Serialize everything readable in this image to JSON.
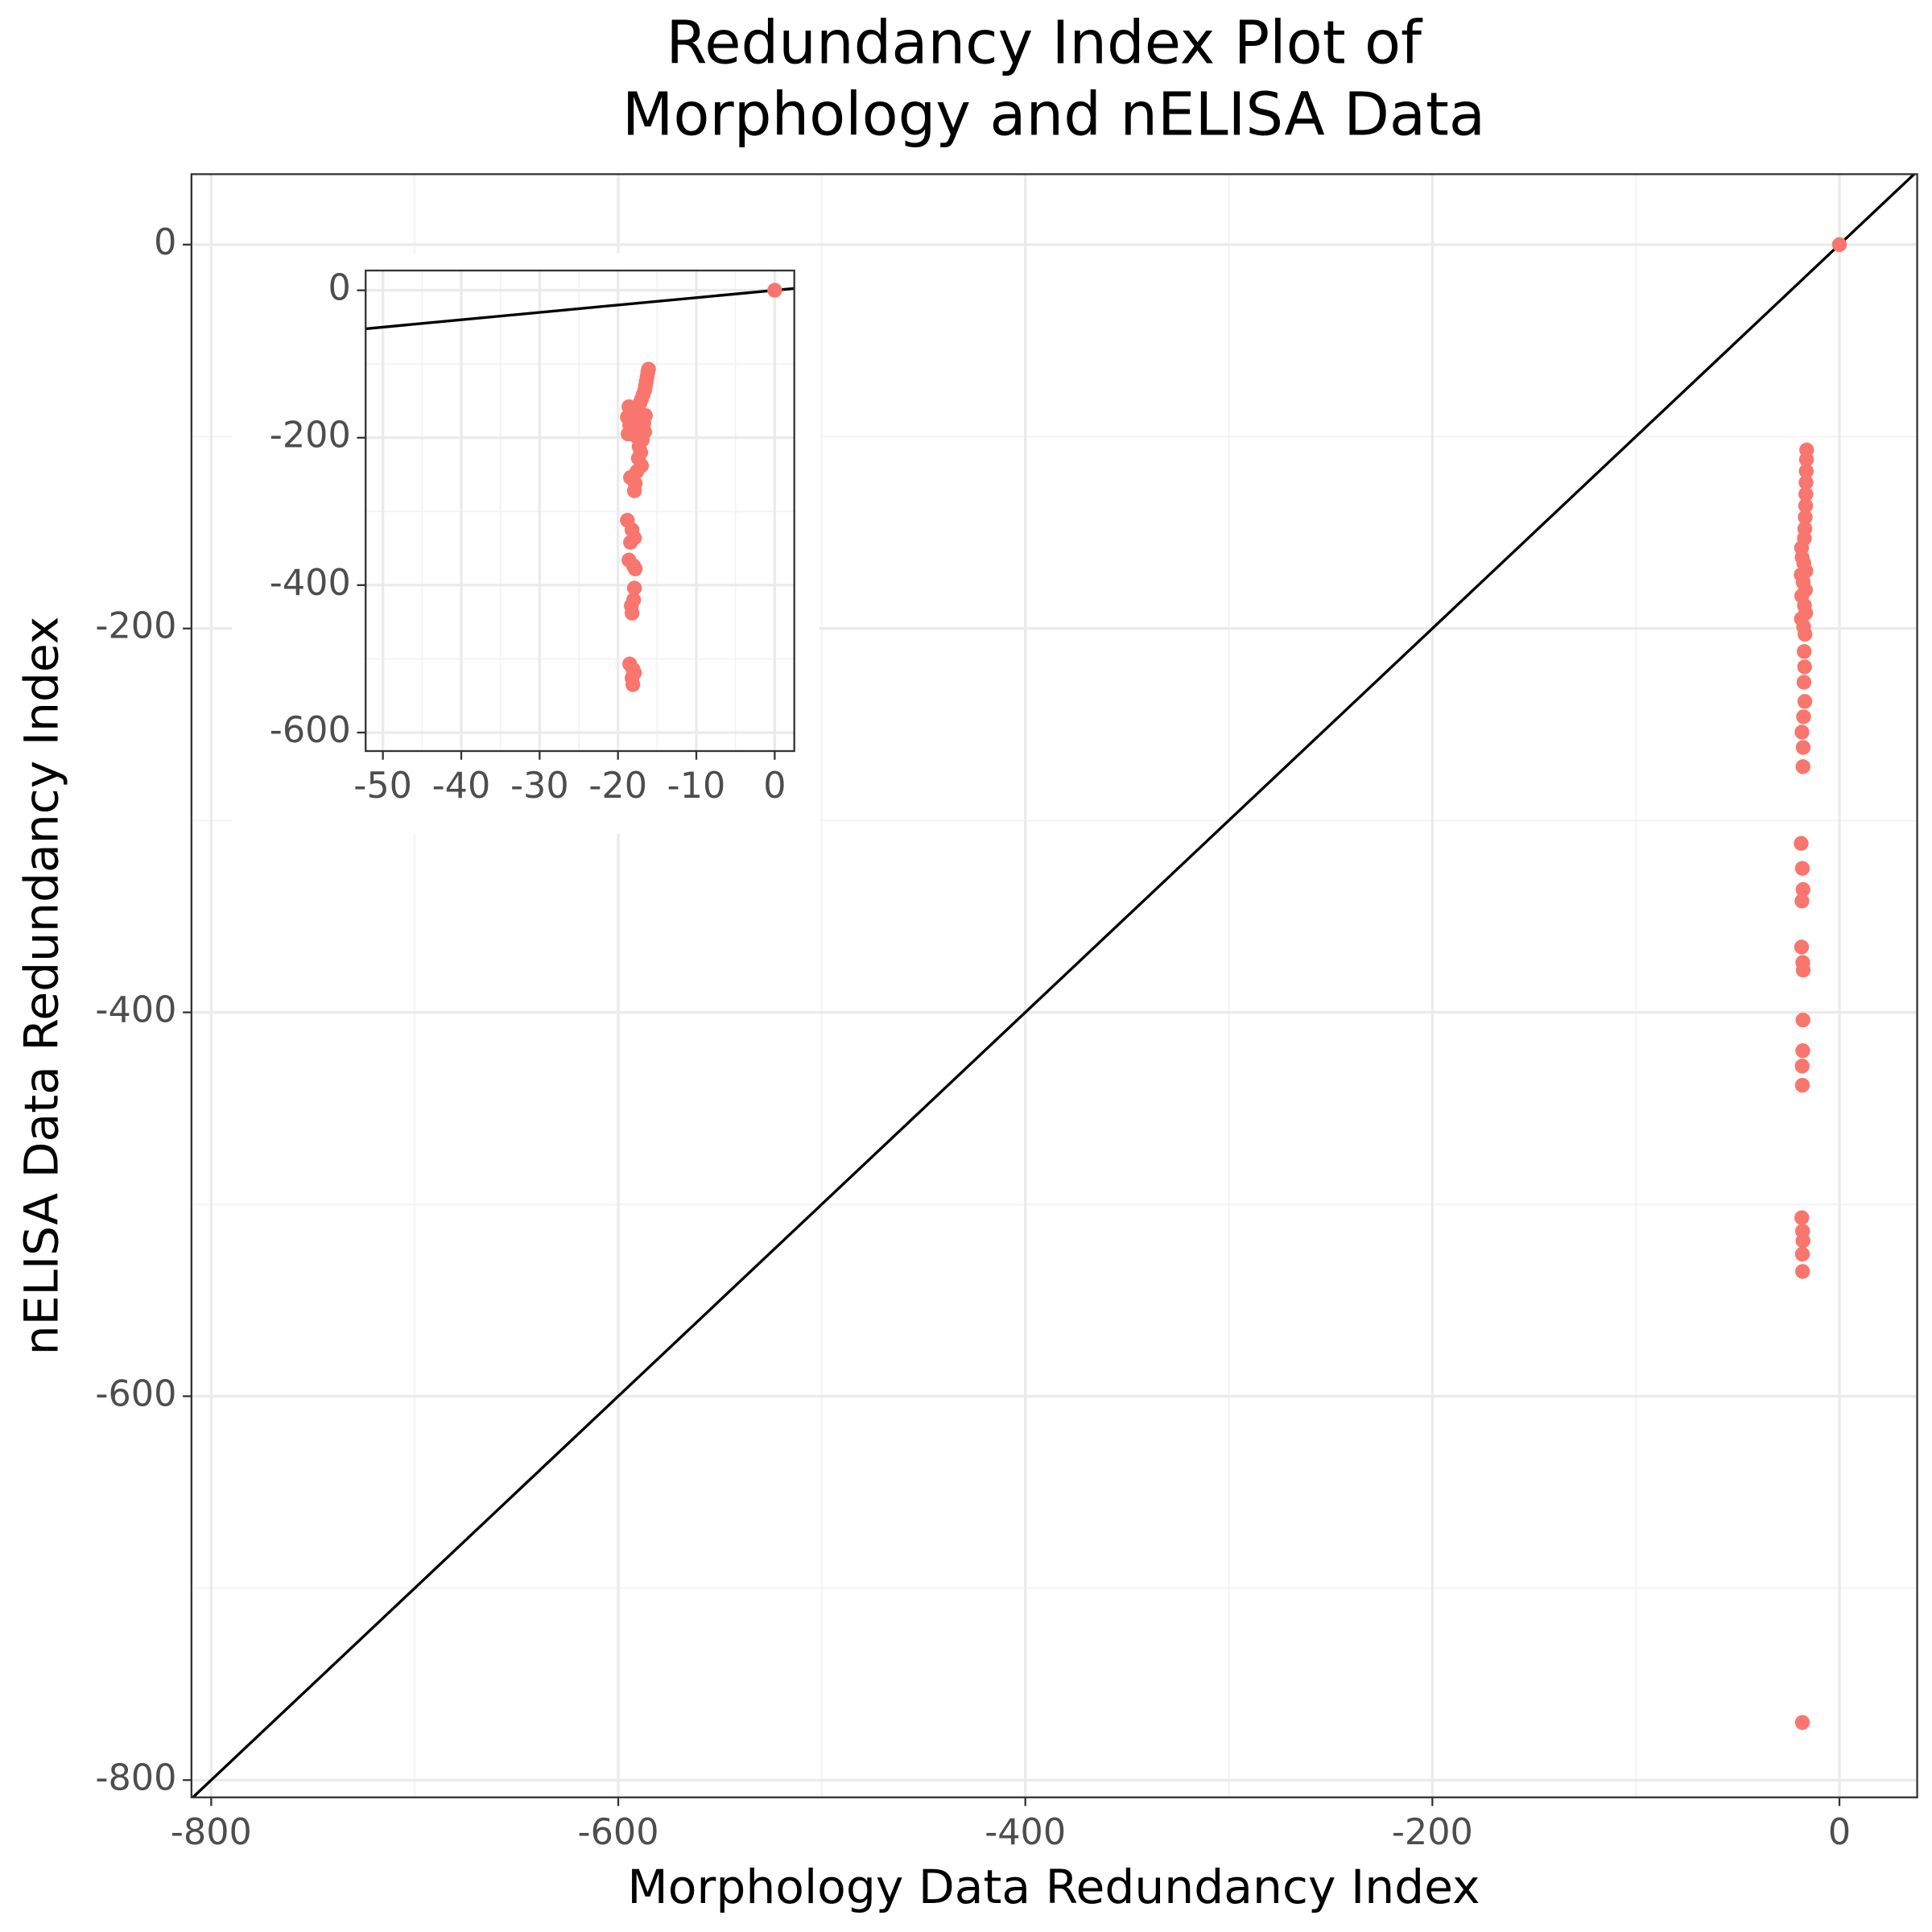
{
  "chart_data": {
    "type": "scatter",
    "title": [
      "Redundancy Index Plot of",
      "Morphology and nELISA Data"
    ],
    "x_label": "Morphology Data Redundancy Index",
    "y_label": "nELISA Data Redundancy Index",
    "color": "#F8766D",
    "reference_line": {
      "slope": 1,
      "intercept": 0,
      "color": "#000000"
    },
    "grid": true,
    "xlim": [
      -809.7,
      38.2
    ],
    "ylim": [
      -809,
      36.7
    ],
    "xticks": [
      -800,
      -600,
      -400,
      -200,
      0
    ],
    "yticks": [
      -800,
      -600,
      -400,
      -200,
      0
    ],
    "x": [
      0,
      -16.1,
      -16.2,
      -16.3,
      -16.4,
      -16.5,
      -16.6,
      -16.8,
      -17.0,
      -17.2,
      -18.6,
      -18.3,
      -17.5,
      -16.5,
      -18.8,
      -17.8,
      -16.7,
      -18.5,
      -17.2,
      -16.6,
      -18.7,
      -17.6,
      -16.9,
      -17.3,
      -17.1,
      -17.4,
      -17.0,
      -17.6,
      -18.4,
      -17.8,
      -17.9,
      -18.8,
      -18.2,
      -17.9,
      -18.4,
      -18.6,
      -18.0,
      -17.8,
      -17.9,
      -18.0,
      -18.3,
      -18.2,
      -18.5,
      -18.1,
      -17.9,
      -18.2,
      -18.1,
      -18.2
    ],
    "y": [
      0,
      -107,
      -112,
      -118,
      -124,
      -130,
      -136,
      -142,
      -148,
      -153,
      -158,
      -163,
      -166,
      -170,
      -172,
      -176,
      -180,
      -183,
      -188,
      -192,
      -195,
      -199,
      -203,
      -212,
      -220,
      -228,
      -238,
      -246,
      -254,
      -262,
      -272,
      -312,
      -325,
      -336,
      -342,
      -366,
      -374,
      -378,
      -404,
      -420,
      -428,
      -438,
      -507,
      -514,
      -519,
      -526,
      -535,
      -770
    ],
    "inset": {
      "xlim": [
        -52.2,
        2.5
      ],
      "ylim": [
        -625.1,
        26.8
      ],
      "xticks": [
        -50,
        -40,
        -30,
        -20,
        -10,
        0
      ],
      "yticks": [
        -600,
        -400,
        -200,
        0
      ]
    }
  }
}
